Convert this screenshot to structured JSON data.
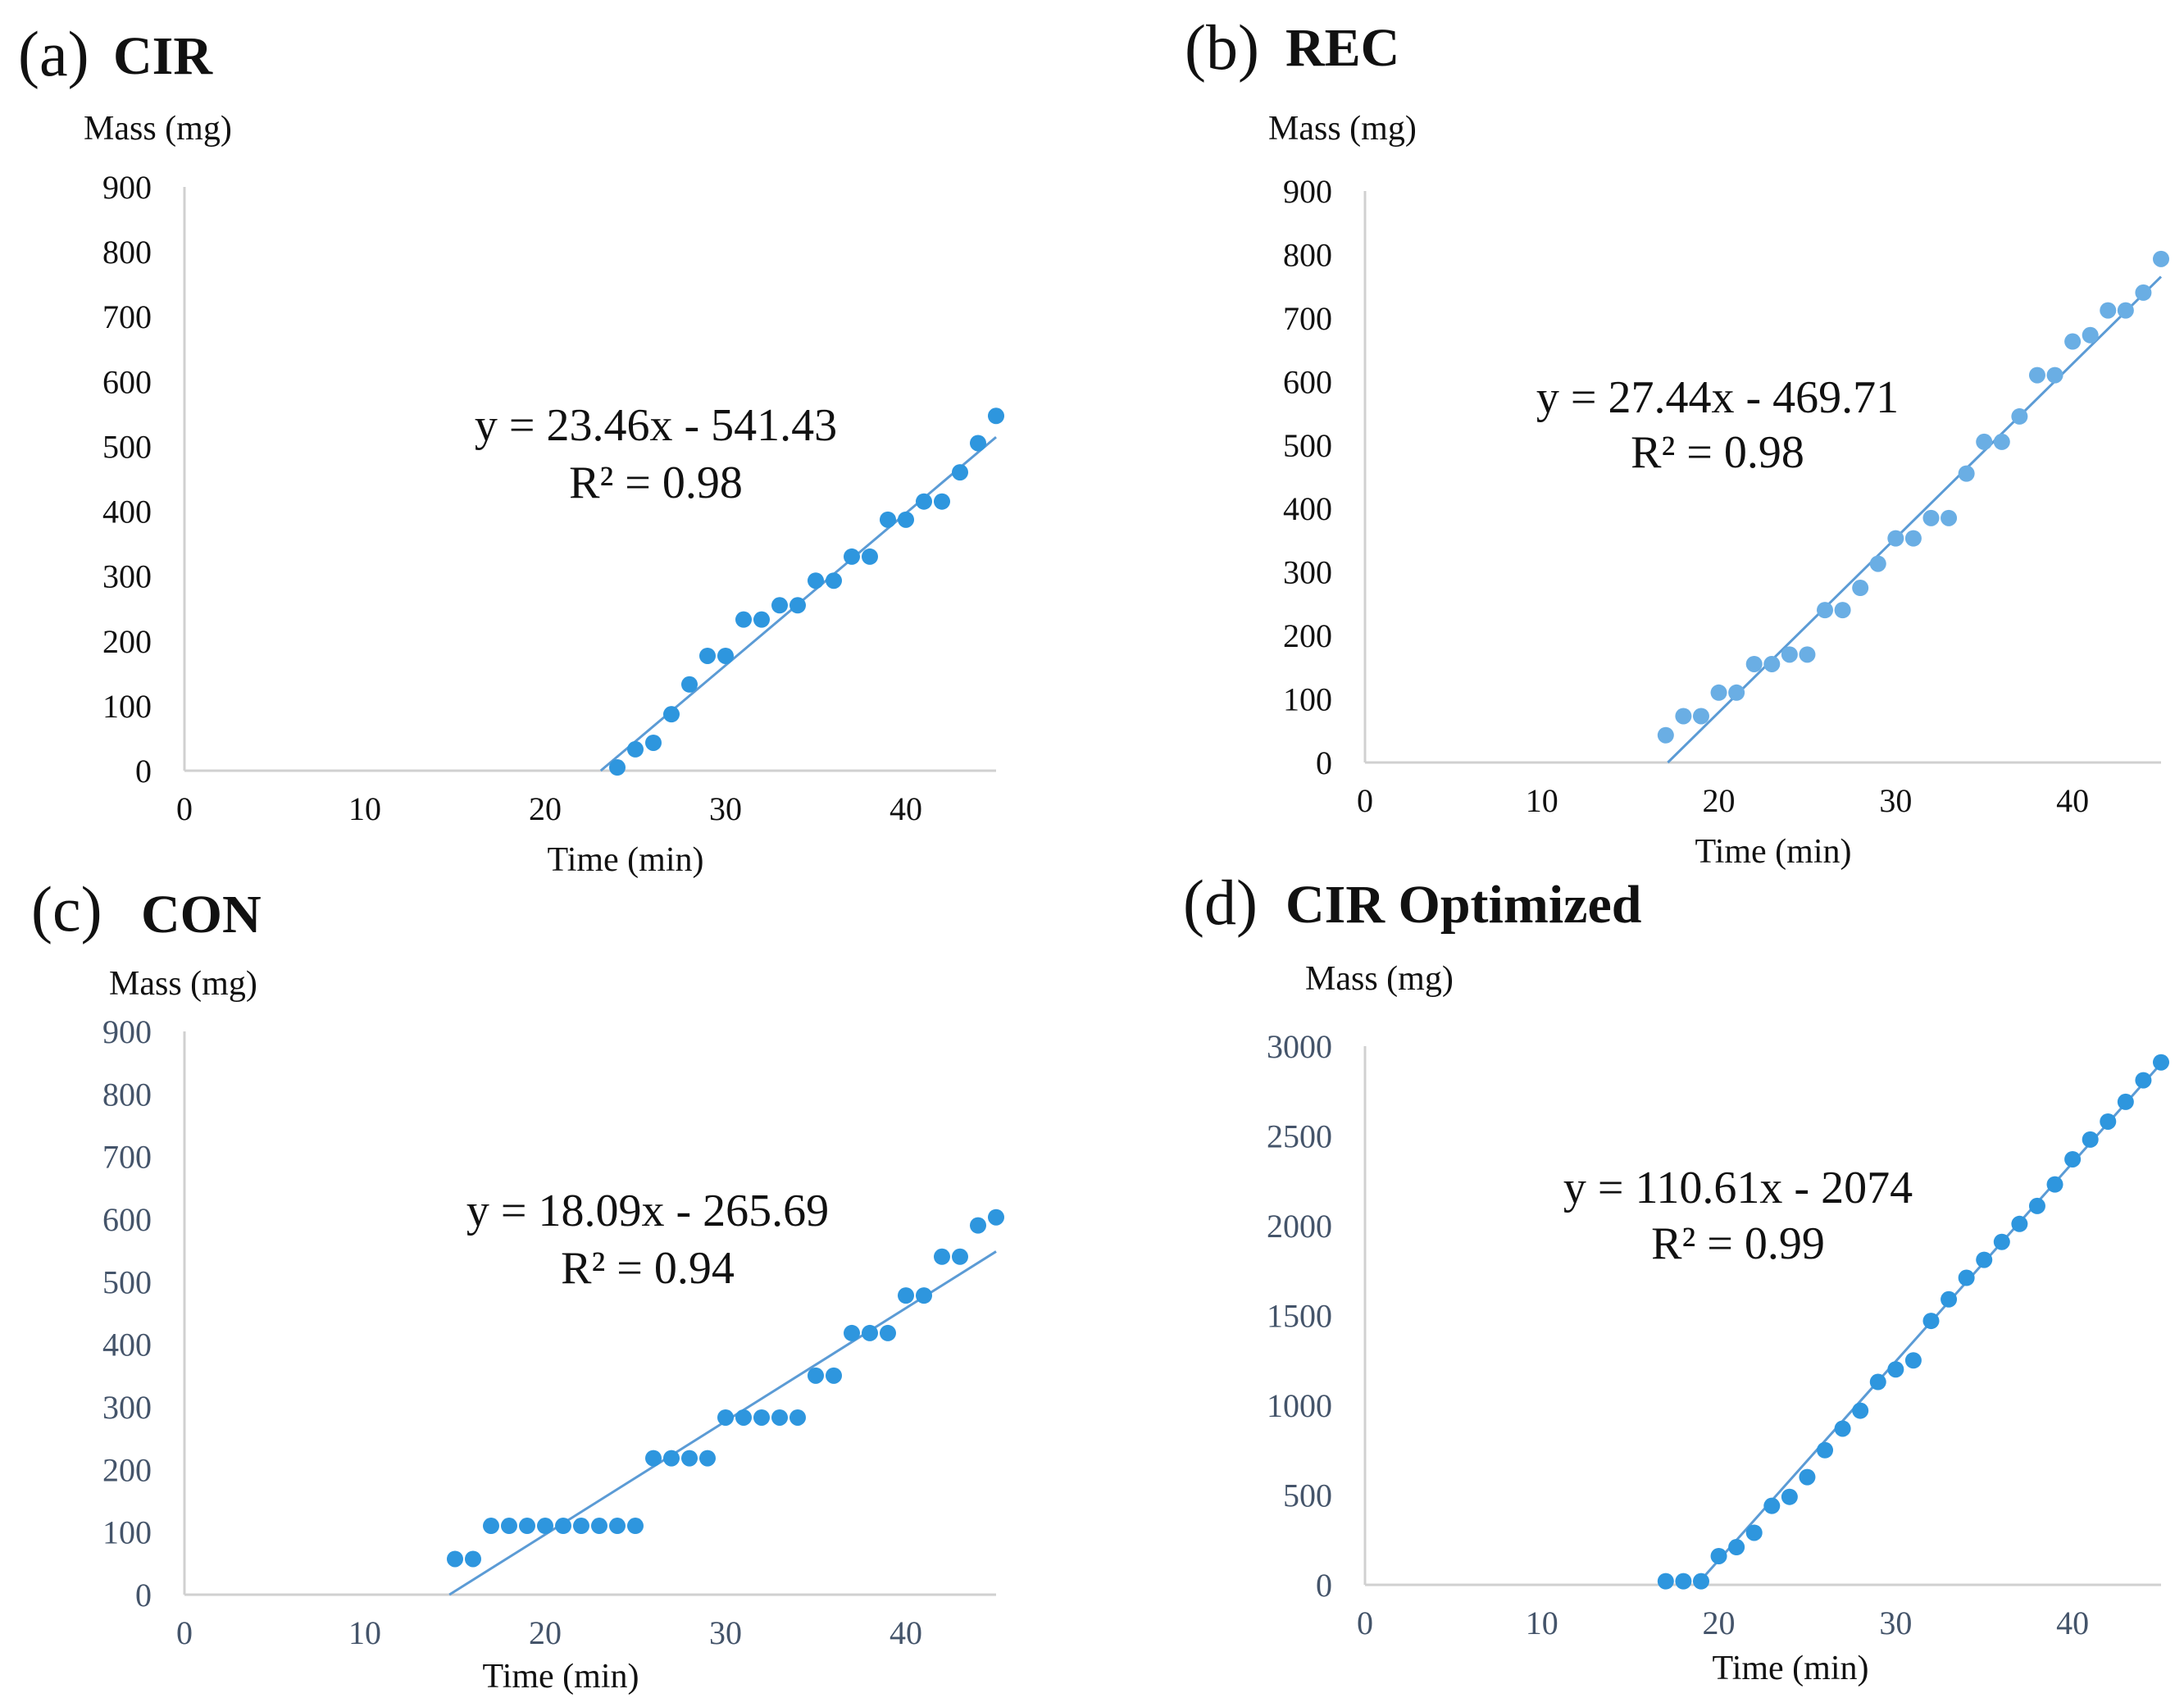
{
  "chart_data": [
    {
      "id": "a",
      "type": "scatter",
      "panel_letter": "(a)",
      "title": "CIR",
      "ylabel": "Mass (mg)",
      "xlabel": "Time (min)",
      "xlim": [
        0,
        45
      ],
      "ylim": [
        0,
        900
      ],
      "xticks": [
        0,
        10,
        20,
        30,
        40
      ],
      "yticks": [
        0,
        100,
        200,
        300,
        400,
        500,
        600,
        700,
        800,
        900
      ],
      "x": [
        24,
        25,
        26,
        27,
        28,
        29,
        30,
        31,
        32,
        33,
        34,
        35,
        36,
        37,
        38,
        39,
        40,
        41,
        42,
        43,
        44,
        45
      ],
      "y": [
        5,
        33,
        43,
        87,
        133,
        177,
        177,
        233,
        233,
        255,
        255,
        293,
        293,
        330,
        330,
        387,
        387,
        415,
        415,
        460,
        505,
        547
      ],
      "trendline": {
        "slope": 23.46,
        "intercept": -541.43,
        "equation": "y = 23.46x - 541.43",
        "r2": "R² = 0.98"
      }
    },
    {
      "id": "b",
      "type": "scatter",
      "panel_letter": "(b)",
      "title": "REC",
      "ylabel": "Mass (mg)",
      "xlabel": "Time (min)",
      "xlim": [
        0,
        45
      ],
      "ylim": [
        0,
        900
      ],
      "xticks": [
        0,
        10,
        20,
        30,
        40
      ],
      "yticks": [
        0,
        100,
        200,
        300,
        400,
        500,
        600,
        700,
        800,
        900
      ],
      "x": [
        17,
        18,
        19,
        20,
        21,
        22,
        23,
        24,
        25,
        26,
        27,
        28,
        29,
        30,
        31,
        32,
        33,
        34,
        35,
        36,
        37,
        38,
        39,
        40,
        41,
        42,
        43,
        44,
        45
      ],
      "y": [
        43,
        73,
        73,
        110,
        110,
        155,
        155,
        170,
        170,
        240,
        240,
        275,
        313,
        353,
        353,
        385,
        385,
        455,
        505,
        505,
        545,
        610,
        610,
        663,
        673,
        712,
        712,
        740,
        793
      ],
      "trendline": {
        "slope": 27.44,
        "intercept": -469.71,
        "equation": "y = 27.44x - 469.71",
        "r2": "R² = 0.98"
      }
    },
    {
      "id": "c",
      "type": "scatter",
      "panel_letter": "(c)",
      "title": "CON",
      "ylabel": "Mass (mg)",
      "xlabel": "Time (min)",
      "xlim": [
        0,
        45
      ],
      "ylim": [
        0,
        900
      ],
      "xticks": [
        0,
        10,
        20,
        30,
        40
      ],
      "yticks": [
        0,
        100,
        200,
        300,
        400,
        500,
        600,
        700,
        800,
        900
      ],
      "x": [
        15,
        16,
        17,
        18,
        19,
        20,
        21,
        22,
        23,
        24,
        25,
        26,
        27,
        28,
        29,
        30,
        31,
        32,
        33,
        34,
        35,
        36,
        37,
        38,
        39,
        40,
        41,
        42,
        43,
        44,
        45
      ],
      "y": [
        57,
        57,
        110,
        110,
        110,
        110,
        110,
        110,
        110,
        110,
        110,
        218,
        218,
        218,
        218,
        283,
        283,
        283,
        283,
        283,
        350,
        350,
        418,
        418,
        418,
        478,
        478,
        540,
        540,
        590,
        603
      ],
      "trendline": {
        "slope": 18.09,
        "intercept": -265.69,
        "equation": "y = 18.09x - 265.69",
        "r2": "R² = 0.94"
      }
    },
    {
      "id": "d",
      "type": "scatter",
      "panel_letter": "(d)",
      "title": "CIR Optimized",
      "ylabel": "Mass (mg)",
      "xlabel": "Time (min)",
      "xlim": [
        0,
        45
      ],
      "ylim": [
        0,
        3000
      ],
      "xticks": [
        0,
        10,
        20,
        30,
        40
      ],
      "yticks": [
        0,
        500,
        1000,
        1500,
        2000,
        2500,
        3000
      ],
      "x": [
        17,
        18,
        19,
        20,
        21,
        22,
        23,
        24,
        25,
        26,
        27,
        28,
        29,
        30,
        31,
        32,
        33,
        34,
        35,
        36,
        37,
        38,
        39,
        40,
        41,
        42,
        43,
        44,
        45
      ],
      "y": [
        20,
        20,
        20,
        160,
        210,
        290,
        440,
        490,
        600,
        750,
        870,
        970,
        1130,
        1200,
        1250,
        1470,
        1590,
        1710,
        1810,
        1910,
        2010,
        2110,
        2230,
        2370,
        2480,
        2580,
        2690,
        2810,
        2910
      ],
      "trendline": {
        "slope": 110.61,
        "intercept": -2074,
        "equation": "y = 110.61x - 2074",
        "r2": "R² = 0.99"
      }
    }
  ]
}
